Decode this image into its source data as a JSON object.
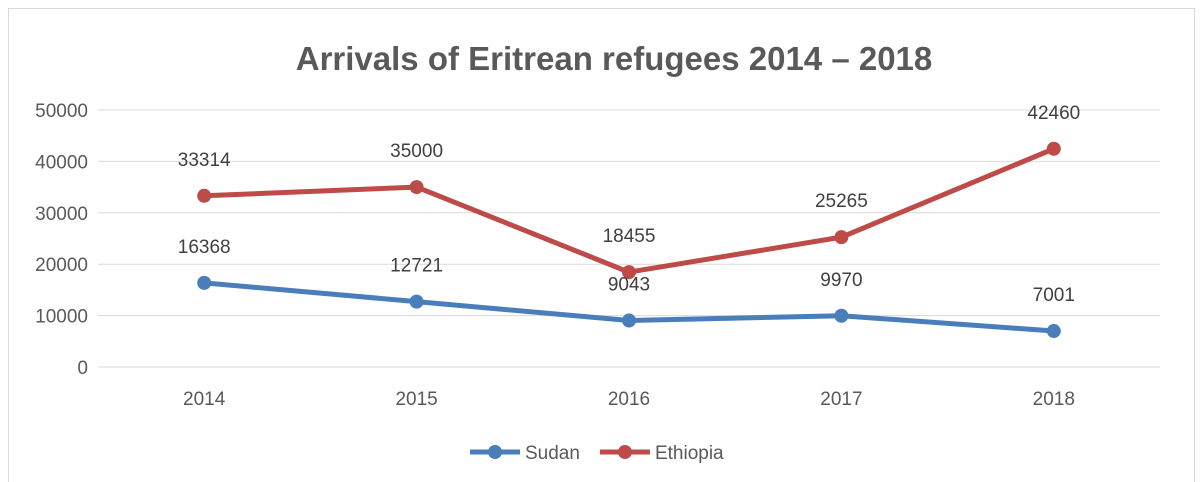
{
  "chart_data": {
    "type": "line",
    "title": "Arrivals of Eritrean refugees 2014 – 2018",
    "categories": [
      "2014",
      "2015",
      "2016",
      "2017",
      "2018"
    ],
    "ylim": [
      0,
      50000
    ],
    "yticks": [
      0,
      10000,
      20000,
      30000,
      40000,
      50000
    ],
    "grid": true,
    "legend": "bottom",
    "series": [
      {
        "name": "Sudan",
        "color": "#4a7ebb",
        "values": [
          16368,
          12721,
          9043,
          9970,
          7001
        ]
      },
      {
        "name": "Ethiopia",
        "color": "#be4b48",
        "values": [
          33314,
          35000,
          18455,
          25265,
          42460
        ]
      }
    ]
  }
}
